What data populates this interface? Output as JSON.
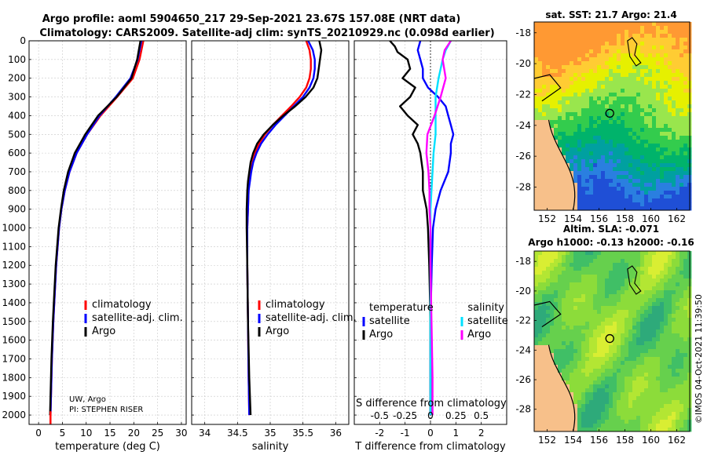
{
  "titles": {
    "line1": "Argo profile: aoml 5904650_217 29-Sep-2021 23.67S 157.08E (NRT data)",
    "line2": "Climatology: CARS2009. Satellite-adj clim: synTS_20210929.nc (0.098d earlier)"
  },
  "credit": "©IMOS 04-Oct-2021 11:39:50",
  "colors": {
    "climatology": "#ff0000",
    "satellite": "#0000ff",
    "argo": "#000000",
    "sat_salinity": "#00e0ff",
    "argo_salinity": "#ff00ff",
    "land": "#f7c08a"
  },
  "chart_data": [
    {
      "type": "line",
      "name": "temperature",
      "xlabel": "temperature (deg C)",
      "ylabel": "",
      "xlim": [
        -2,
        31
      ],
      "ylim": [
        2050,
        0
      ],
      "xticks": [
        "0",
        "5",
        "10",
        "15",
        "20",
        "25",
        "30"
      ],
      "yticks": [
        "0",
        "100",
        "200",
        "300",
        "400",
        "500",
        "600",
        "700",
        "800",
        "900",
        "1000",
        "1100",
        "1200",
        "1300",
        "1400",
        "1500",
        "1600",
        "1700",
        "1800",
        "1900",
        "2000"
      ],
      "legend": [
        "climatology",
        "satellite-adj. clim.",
        "Argo"
      ],
      "annotation": [
        "UW, Argo",
        "PI: STEPHEN RISER"
      ],
      "series": [
        {
          "name": "climatology",
          "depth": [
            0,
            100,
            200,
            300,
            400,
            500,
            600,
            700,
            800,
            900,
            1000,
            1200,
            1500,
            1700,
            2000
          ],
          "values": [
            22.0,
            21.2,
            19.8,
            16.5,
            13.0,
            10.2,
            8.0,
            6.5,
            5.5,
            4.8,
            4.3,
            3.7,
            3.1,
            2.8,
            2.5
          ]
        },
        {
          "name": "satellite-adj. clim.",
          "depth": [
            0,
            100,
            200,
            300,
            400,
            500,
            600,
            700,
            800,
            900,
            1000,
            1200,
            1500,
            1700,
            2000
          ],
          "values": [
            21.6,
            20.8,
            19.3,
            16.2,
            12.8,
            10.2,
            8.0,
            6.5,
            5.5,
            4.8,
            4.3,
            3.7,
            3.1,
            2.8,
            2.5
          ]
        },
        {
          "name": "Argo",
          "depth": [
            0,
            100,
            200,
            300,
            400,
            500,
            600,
            700,
            800,
            900,
            1000,
            1200,
            1500,
            1700,
            2000
          ],
          "values": [
            21.4,
            20.7,
            19.5,
            16.4,
            12.5,
            9.8,
            7.6,
            6.2,
            5.3,
            4.7,
            4.2,
            3.6,
            3.0,
            2.7,
            2.4
          ]
        }
      ]
    },
    {
      "type": "line",
      "name": "salinity",
      "xlabel": "salinity",
      "xlim": [
        33.8,
        36.2
      ],
      "ylim": [
        2050,
        0
      ],
      "xticks": [
        "34",
        "34.5",
        "35",
        "35.5",
        "36"
      ],
      "legend": [
        "climatology",
        "satellite-adj. clim.",
        "Argo"
      ],
      "series": [
        {
          "name": "climatology",
          "depth": [
            0,
            50,
            100,
            150,
            200,
            250,
            300,
            350,
            400,
            450,
            500,
            550,
            600,
            650,
            700,
            750,
            800,
            900,
            1000,
            1200,
            1500,
            1800,
            2000
          ],
          "values": [
            35.55,
            35.6,
            35.62,
            35.62,
            35.6,
            35.55,
            35.45,
            35.32,
            35.18,
            35.04,
            34.92,
            34.83,
            34.77,
            34.73,
            34.7,
            34.68,
            34.67,
            34.66,
            34.65,
            34.65,
            34.66,
            34.67,
            34.68
          ]
        },
        {
          "name": "satellite-adj. clim.",
          "depth": [
            0,
            50,
            100,
            150,
            200,
            250,
            300,
            350,
            400,
            450,
            500,
            550,
            600,
            650,
            700,
            750,
            800,
            900,
            1000,
            1200,
            1500,
            1800,
            2000
          ],
          "values": [
            35.58,
            35.65,
            35.68,
            35.68,
            35.66,
            35.6,
            35.5,
            35.36,
            35.22,
            35.08,
            34.96,
            34.86,
            34.79,
            34.74,
            34.71,
            34.69,
            34.67,
            34.66,
            34.65,
            34.65,
            34.66,
            34.67,
            34.68
          ]
        },
        {
          "name": "Argo",
          "depth": [
            0,
            50,
            100,
            150,
            200,
            250,
            300,
            350,
            400,
            450,
            500,
            550,
            600,
            650,
            700,
            750,
            800,
            900,
            1000,
            1200,
            1500,
            1800,
            2000
          ],
          "values": [
            35.75,
            35.78,
            35.76,
            35.74,
            35.72,
            35.66,
            35.54,
            35.38,
            35.2,
            35.04,
            34.9,
            34.8,
            34.74,
            34.7,
            34.68,
            34.66,
            34.65,
            34.64,
            34.64,
            34.65,
            34.66,
            34.68,
            34.7
          ]
        }
      ]
    },
    {
      "type": "line",
      "name": "difference",
      "xlabel": "T difference from climatology",
      "xlabel2": "S difference from climatology",
      "xlim": [
        -3,
        3
      ],
      "ylim": [
        2050,
        0
      ],
      "xticks": [
        "-2",
        "-1",
        "0",
        "1",
        "2"
      ],
      "xticks_salinity": [
        "-0.5",
        "-0.25",
        "0",
        "0.25",
        "0.5"
      ],
      "legend_left_title": "temperature",
      "legend_right_title": "salinity",
      "legend_left": [
        "satellite",
        "Argo"
      ],
      "legend_right": [
        "satellite",
        "Argo"
      ],
      "series": [
        {
          "name": "temperature satellite",
          "depth": [
            0,
            50,
            100,
            150,
            200,
            250,
            300,
            350,
            400,
            450,
            500,
            550,
            600,
            700,
            800,
            900,
            1000,
            1200,
            1500,
            1800,
            2000
          ],
          "values": [
            -0.4,
            -0.5,
            -0.4,
            -0.3,
            -0.3,
            -0.1,
            0.3,
            0.6,
            0.7,
            0.8,
            0.9,
            0.8,
            0.8,
            0.7,
            0.4,
            0.2,
            0.1,
            0.05,
            0.0,
            0.0,
            0.0
          ]
        },
        {
          "name": "temperature Argo",
          "depth": [
            0,
            30,
            60,
            100,
            150,
            200,
            250,
            300,
            350,
            400,
            450,
            500,
            550,
            600,
            700,
            800,
            900,
            1000,
            1200,
            1500,
            1800,
            2000
          ],
          "values": [
            -1.6,
            -1.4,
            -1.3,
            -0.9,
            -0.8,
            -1.1,
            -0.6,
            -0.8,
            -1.2,
            -0.9,
            -0.5,
            -0.7,
            -0.5,
            -0.4,
            -0.3,
            -0.3,
            -0.15,
            -0.1,
            -0.05,
            0.0,
            0.0,
            0.0
          ]
        },
        {
          "name": "salinity satellite",
          "depth": [
            0,
            50,
            100,
            200,
            300,
            400,
            500,
            600,
            700,
            800,
            900,
            1000,
            1200,
            1500,
            1800,
            2000
          ],
          "values": [
            0.2,
            0.15,
            0.12,
            0.08,
            0.05,
            0.05,
            0.05,
            0.03,
            0.02,
            0.01,
            0.0,
            0.0,
            0.0,
            0.0,
            0.0,
            0.0
          ]
        },
        {
          "name": "salinity Argo",
          "depth": [
            0,
            50,
            100,
            200,
            300,
            400,
            500,
            600,
            700,
            800,
            900,
            1000,
            1200,
            1500,
            1800,
            2000
          ],
          "values": [
            0.2,
            0.14,
            0.12,
            0.15,
            0.1,
            0.04,
            -0.03,
            -0.04,
            -0.02,
            -0.01,
            -0.01,
            0.0,
            0.0,
            0.01,
            0.02,
            0.02
          ]
        }
      ]
    }
  ],
  "maps": {
    "sst": {
      "title": "sat. SST: 21.7 Argo: 21.4",
      "xticks": [
        "152",
        "154",
        "156",
        "158",
        "160",
        "162"
      ],
      "yticks": [
        "-18",
        "-20",
        "-22",
        "-24",
        "-26",
        "-28"
      ]
    },
    "sla": {
      "title_line1": "Altim. SLA: -0.071",
      "title_line2": "Argo h1000: -0.13 h2000: -0.16",
      "xticks": [
        "152",
        "154",
        "156",
        "158",
        "160",
        "162"
      ],
      "yticks": [
        "-18",
        "-20",
        "-22",
        "-24",
        "-26",
        "-28"
      ]
    }
  }
}
